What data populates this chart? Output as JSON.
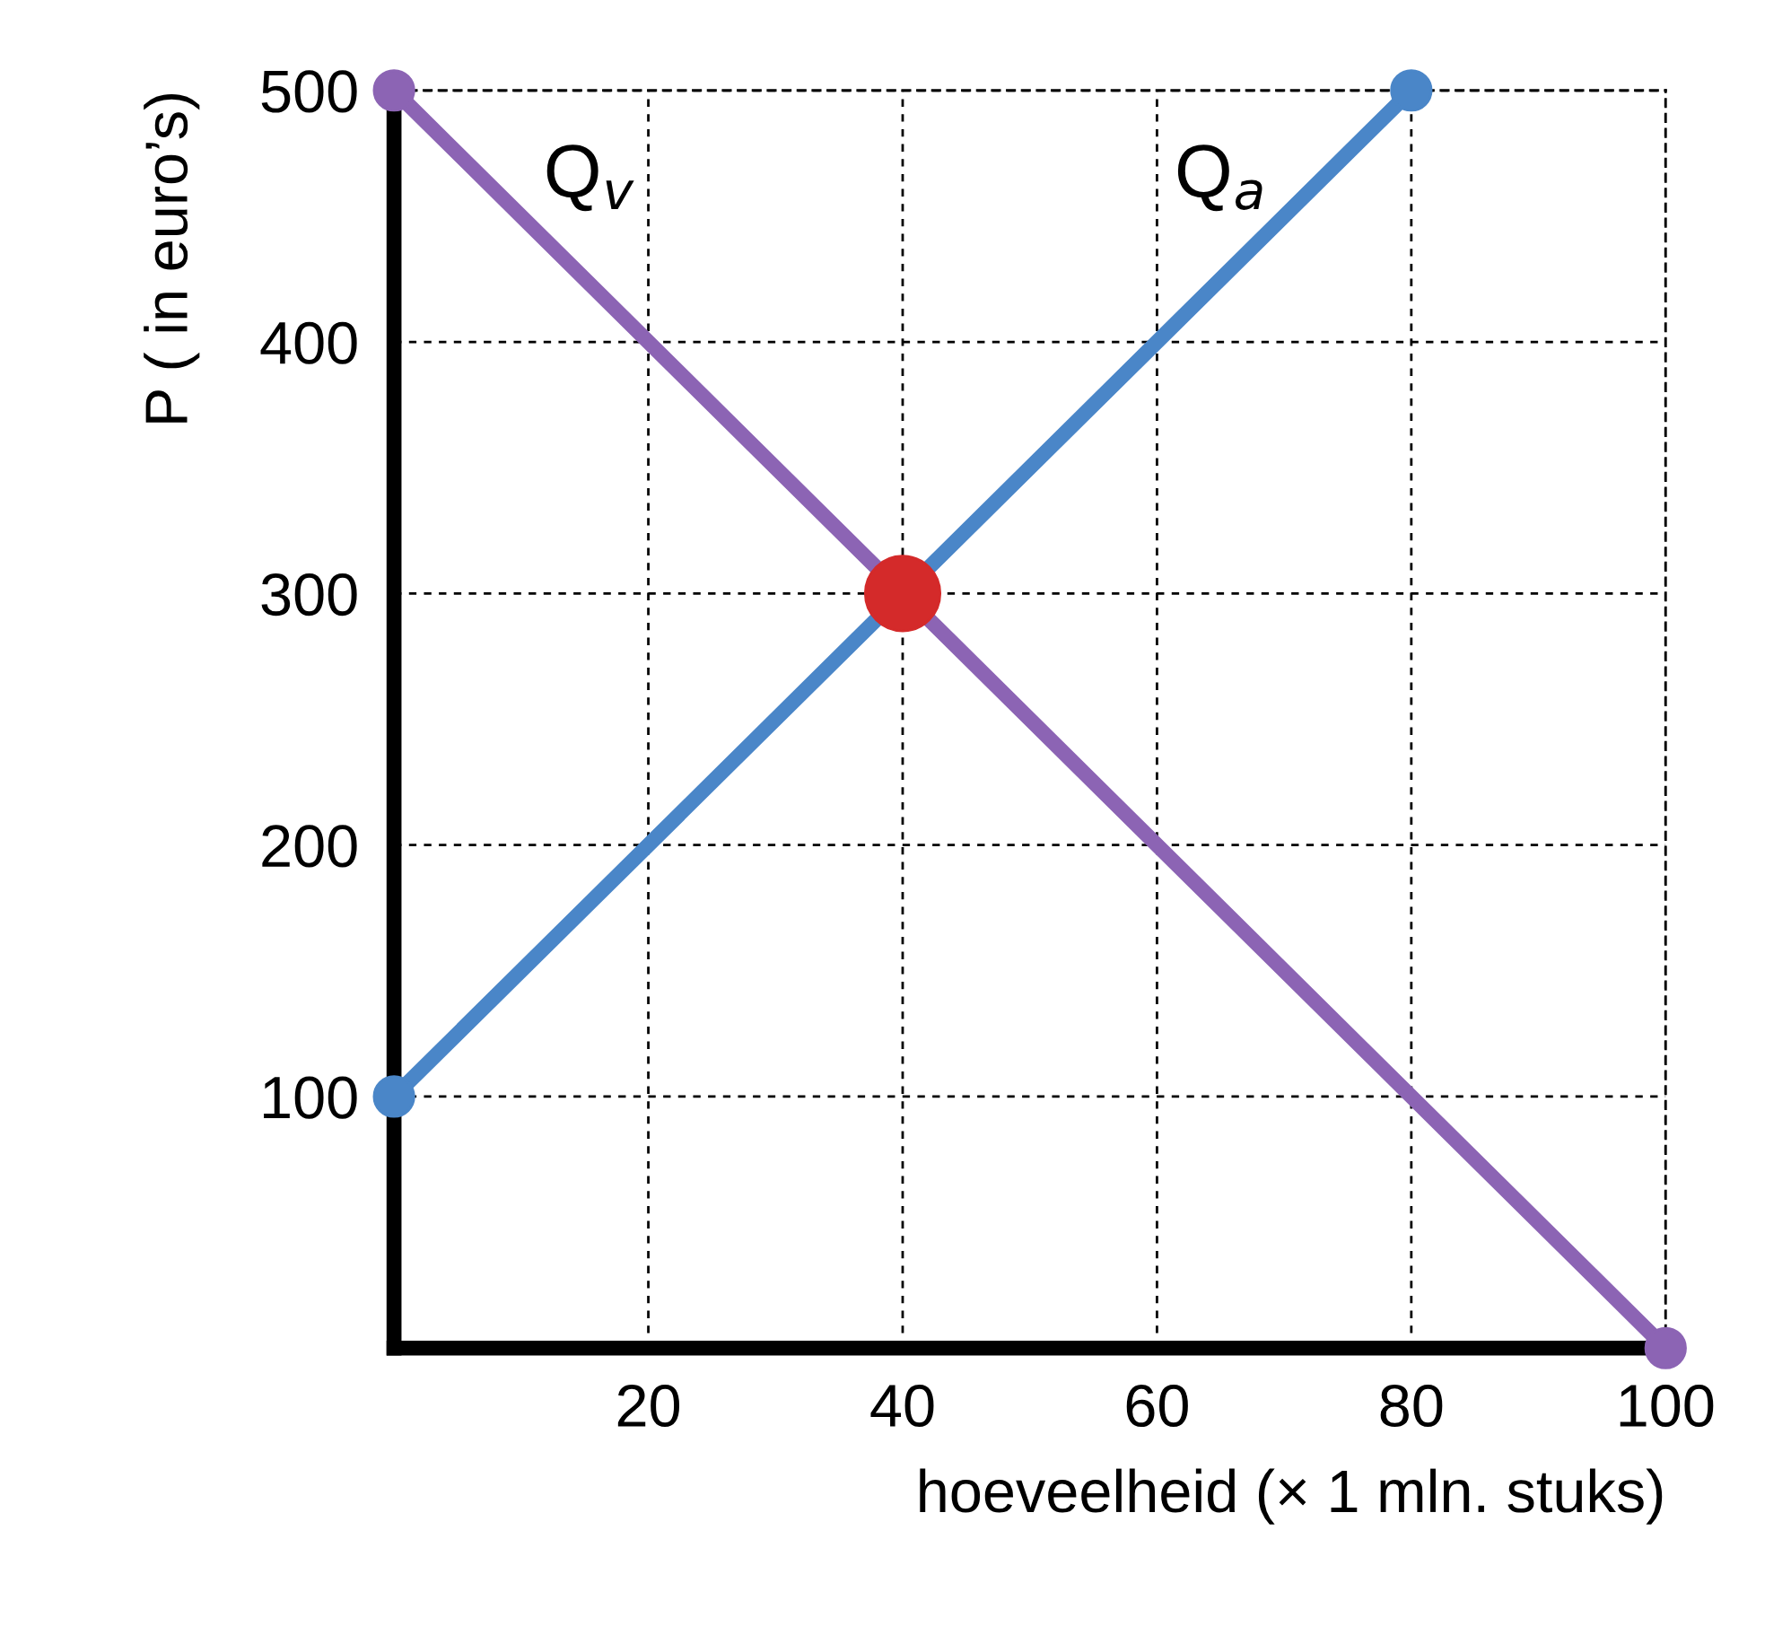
{
  "chart_data": {
    "type": "line",
    "xlabel": "hoeveelheid (× 1 mln. stuks)",
    "ylabel": "P ( in euro’s)",
    "series": [
      {
        "name": "Q$_{v}$",
        "color": "#8c64b4",
        "x": [
          0,
          100
        ],
        "values": [
          500,
          0
        ]
      },
      {
        "name": "Q$_{a}$",
        "color": "#4a86c8",
        "x": [
          0,
          80
        ],
        "values": [
          100,
          500
        ]
      },
      {
        "type": "scatter",
        "color": "#d42a2a",
        "x": [
          40
        ],
        "values": [
          300
        ]
      }
    ],
    "xlim": [
      0,
      100
    ],
    "xticks": [
      20,
      40,
      60,
      80,
      100
    ],
    "ylim": [
      0,
      500
    ],
    "yticks": [
      100,
      200,
      300,
      400,
      500
    ],
    "grid": true,
    "marker": "circle",
    "line_style": "solid"
  }
}
